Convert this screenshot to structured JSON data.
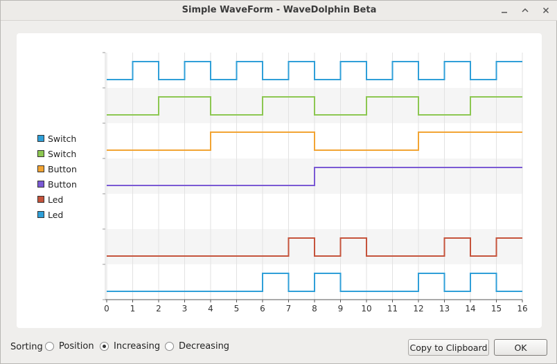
{
  "window": {
    "title": "Simple WaveForm - WaveDolphin Beta"
  },
  "legend": [
    {
      "label": "Switch",
      "color": "#2f9fd8"
    },
    {
      "label": "Switch",
      "color": "#8cc751"
    },
    {
      "label": "Button",
      "color": "#f2a433"
    },
    {
      "label": "Button",
      "color": "#7a59d4"
    },
    {
      "label": "Led",
      "color": "#c5533b"
    },
    {
      "label": "Led",
      "color": "#2f9fd8"
    }
  ],
  "chart_data": {
    "type": "line",
    "xlim": [
      0,
      16
    ],
    "x_ticks": [
      "0",
      "1",
      "2",
      "3",
      "4",
      "5",
      "6",
      "7",
      "8",
      "9",
      "10",
      "11",
      "12",
      "13",
      "14",
      "15",
      "16"
    ],
    "lanes": [
      {
        "name": "Switch",
        "color": "#2f9fd8",
        "lane": 0,
        "levels": [
          0,
          1,
          0,
          1,
          0,
          1,
          0,
          1,
          0,
          1,
          0,
          1,
          0,
          1,
          0,
          1
        ]
      },
      {
        "name": "Switch",
        "color": "#8cc751",
        "lane": 1,
        "levels": [
          0,
          0,
          1,
          1,
          0,
          0,
          1,
          1,
          0,
          0,
          1,
          1,
          0,
          0,
          1,
          1
        ]
      },
      {
        "name": "Button",
        "color": "#f2a433",
        "lane": 2,
        "levels": [
          0,
          0,
          0,
          0,
          1,
          1,
          1,
          1,
          0,
          0,
          0,
          0,
          1,
          1,
          1,
          1
        ]
      },
      {
        "name": "Button",
        "color": "#7a59d4",
        "lane": 3,
        "levels": [
          0,
          0,
          0,
          0,
          0,
          0,
          0,
          0,
          1,
          1,
          1,
          1,
          1,
          1,
          1,
          1
        ]
      },
      {
        "name": "Led",
        "color": "#c5533b",
        "lane": 5,
        "levels": [
          0,
          0,
          0,
          0,
          0,
          0,
          0,
          1,
          0,
          1,
          0,
          0,
          0,
          1,
          0,
          1
        ]
      },
      {
        "name": "Led",
        "color": "#2f9fd8",
        "lane": 6,
        "levels": [
          0,
          0,
          0,
          0,
          0,
          0,
          1,
          0,
          1,
          0,
          0,
          0,
          1,
          0,
          1,
          0
        ]
      }
    ]
  },
  "sorting": {
    "label": "Sorting",
    "options": [
      {
        "label": "Position",
        "selected": false
      },
      {
        "label": "Increasing",
        "selected": true
      },
      {
        "label": "Decreasing",
        "selected": false
      }
    ]
  },
  "buttons": {
    "copy": "Copy to Clipboard",
    "ok": "OK"
  }
}
